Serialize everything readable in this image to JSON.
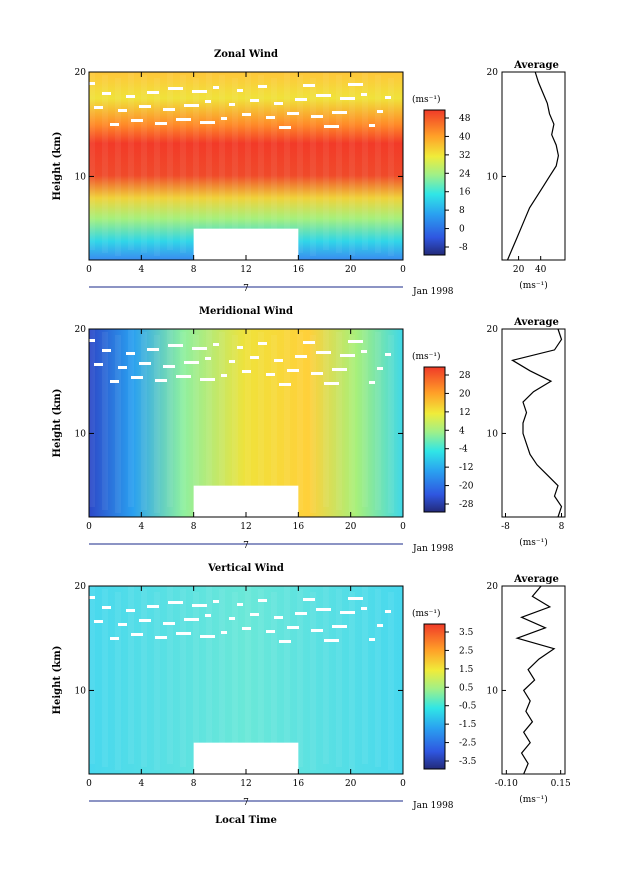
{
  "figure": {
    "xlabel": "Local Time",
    "date_label": "Jan 1998",
    "day_label": "7"
  },
  "chart_data": [
    {
      "type": "heatmap",
      "title": "Zonal Wind",
      "ylabel": "Height (km)",
      "xlabel": "Local Time",
      "x_ticks": [
        "0",
        "4",
        "8",
        "12",
        "16",
        "20",
        "0"
      ],
      "y_ticks": [
        "20",
        "10"
      ],
      "xlim": [
        0,
        24
      ],
      "ylim": [
        2,
        20
      ],
      "colorbar": {
        "unit": "(ms⁻¹)",
        "ticks": [
          "48",
          "40",
          "32",
          "24",
          "16",
          "8",
          "0",
          "-8"
        ],
        "range": [
          -12,
          52
        ]
      },
      "data_gap": {
        "x": [
          8,
          16
        ],
        "y": [
          2,
          5
        ]
      },
      "profile": {
        "title": "Average",
        "xlabel": "(ms⁻¹)",
        "x_ticks": [
          "20",
          "40"
        ],
        "xlim": [
          5,
          62
        ],
        "y_ticks": [
          "20",
          "10"
        ],
        "points": [
          [
            10,
            2
          ],
          [
            14,
            3
          ],
          [
            18,
            4
          ],
          [
            22,
            5
          ],
          [
            26,
            6
          ],
          [
            30,
            7
          ],
          [
            36,
            8
          ],
          [
            42,
            9
          ],
          [
            48,
            10
          ],
          [
            54,
            11
          ],
          [
            56,
            12
          ],
          [
            54,
            13
          ],
          [
            50,
            14
          ],
          [
            52,
            15
          ],
          [
            48,
            16
          ],
          [
            46,
            17
          ],
          [
            42,
            18
          ],
          [
            38,
            19
          ],
          [
            35,
            20
          ]
        ]
      }
    },
    {
      "type": "heatmap",
      "title": "Meridional Wind",
      "ylabel": "Height (km)",
      "xlabel": "Local Time",
      "x_ticks": [
        "0",
        "4",
        "8",
        "12",
        "16",
        "20",
        "0"
      ],
      "y_ticks": [
        "20",
        "10"
      ],
      "xlim": [
        0,
        24
      ],
      "ylim": [
        2,
        20
      ],
      "colorbar": {
        "unit": "(ms⁻¹)",
        "ticks": [
          "28",
          "20",
          "12",
          "4",
          "-4",
          "-12",
          "-20",
          "-28"
        ],
        "range": [
          -32,
          32
        ]
      },
      "data_gap": {
        "x": [
          8,
          16
        ],
        "y": [
          2,
          5
        ]
      },
      "profile": {
        "title": "Average",
        "xlabel": "(ms⁻¹)",
        "x_ticks": [
          "-8",
          "8"
        ],
        "xlim": [
          -9,
          9
        ],
        "y_ticks": [
          "20",
          "10"
        ],
        "points": [
          [
            7,
            2
          ],
          [
            8,
            3
          ],
          [
            6,
            4
          ],
          [
            7,
            5
          ],
          [
            4,
            6
          ],
          [
            1,
            7
          ],
          [
            -1,
            8
          ],
          [
            -2,
            9
          ],
          [
            -3,
            10
          ],
          [
            -3,
            11
          ],
          [
            -2,
            12
          ],
          [
            -3,
            13
          ],
          [
            0,
            14
          ],
          [
            5,
            15
          ],
          [
            -1,
            16
          ],
          [
            -6,
            17
          ],
          [
            6,
            18
          ],
          [
            8,
            19
          ],
          [
            7,
            20
          ]
        ]
      }
    },
    {
      "type": "heatmap",
      "title": "Vertical Wind",
      "ylabel": "Height (km)",
      "xlabel": "Local Time",
      "x_ticks": [
        "0",
        "4",
        "8",
        "12",
        "16",
        "20",
        "0"
      ],
      "y_ticks": [
        "20",
        "10"
      ],
      "xlim": [
        0,
        24
      ],
      "ylim": [
        2,
        20
      ],
      "colorbar": {
        "unit": "(ms⁻¹)",
        "ticks": [
          "3.5",
          "2.5",
          "1.5",
          "0.5",
          "-0.5",
          "-1.5",
          "-2.5",
          "-3.5"
        ],
        "range": [
          -4,
          4
        ]
      },
      "data_gap": {
        "x": [
          8,
          16
        ],
        "y": [
          2,
          5
        ]
      },
      "profile": {
        "title": "Average",
        "xlabel": "(ms⁻¹)",
        "x_ticks": [
          "-0.10",
          "0.15"
        ],
        "xlim": [
          -0.12,
          0.17
        ],
        "y_ticks": [
          "20",
          "10"
        ],
        "points": [
          [
            -0.02,
            2
          ],
          [
            0.0,
            3
          ],
          [
            -0.03,
            4
          ],
          [
            0.01,
            5
          ],
          [
            -0.02,
            6
          ],
          [
            0.02,
            7
          ],
          [
            -0.01,
            8
          ],
          [
            0.01,
            9
          ],
          [
            -0.02,
            10
          ],
          [
            0.03,
            11
          ],
          [
            0.0,
            12
          ],
          [
            0.05,
            13
          ],
          [
            0.12,
            14
          ],
          [
            -0.05,
            15
          ],
          [
            0.08,
            16
          ],
          [
            -0.03,
            17
          ],
          [
            0.1,
            18
          ],
          [
            0.02,
            19
          ],
          [
            0.06,
            20
          ]
        ]
      }
    }
  ]
}
